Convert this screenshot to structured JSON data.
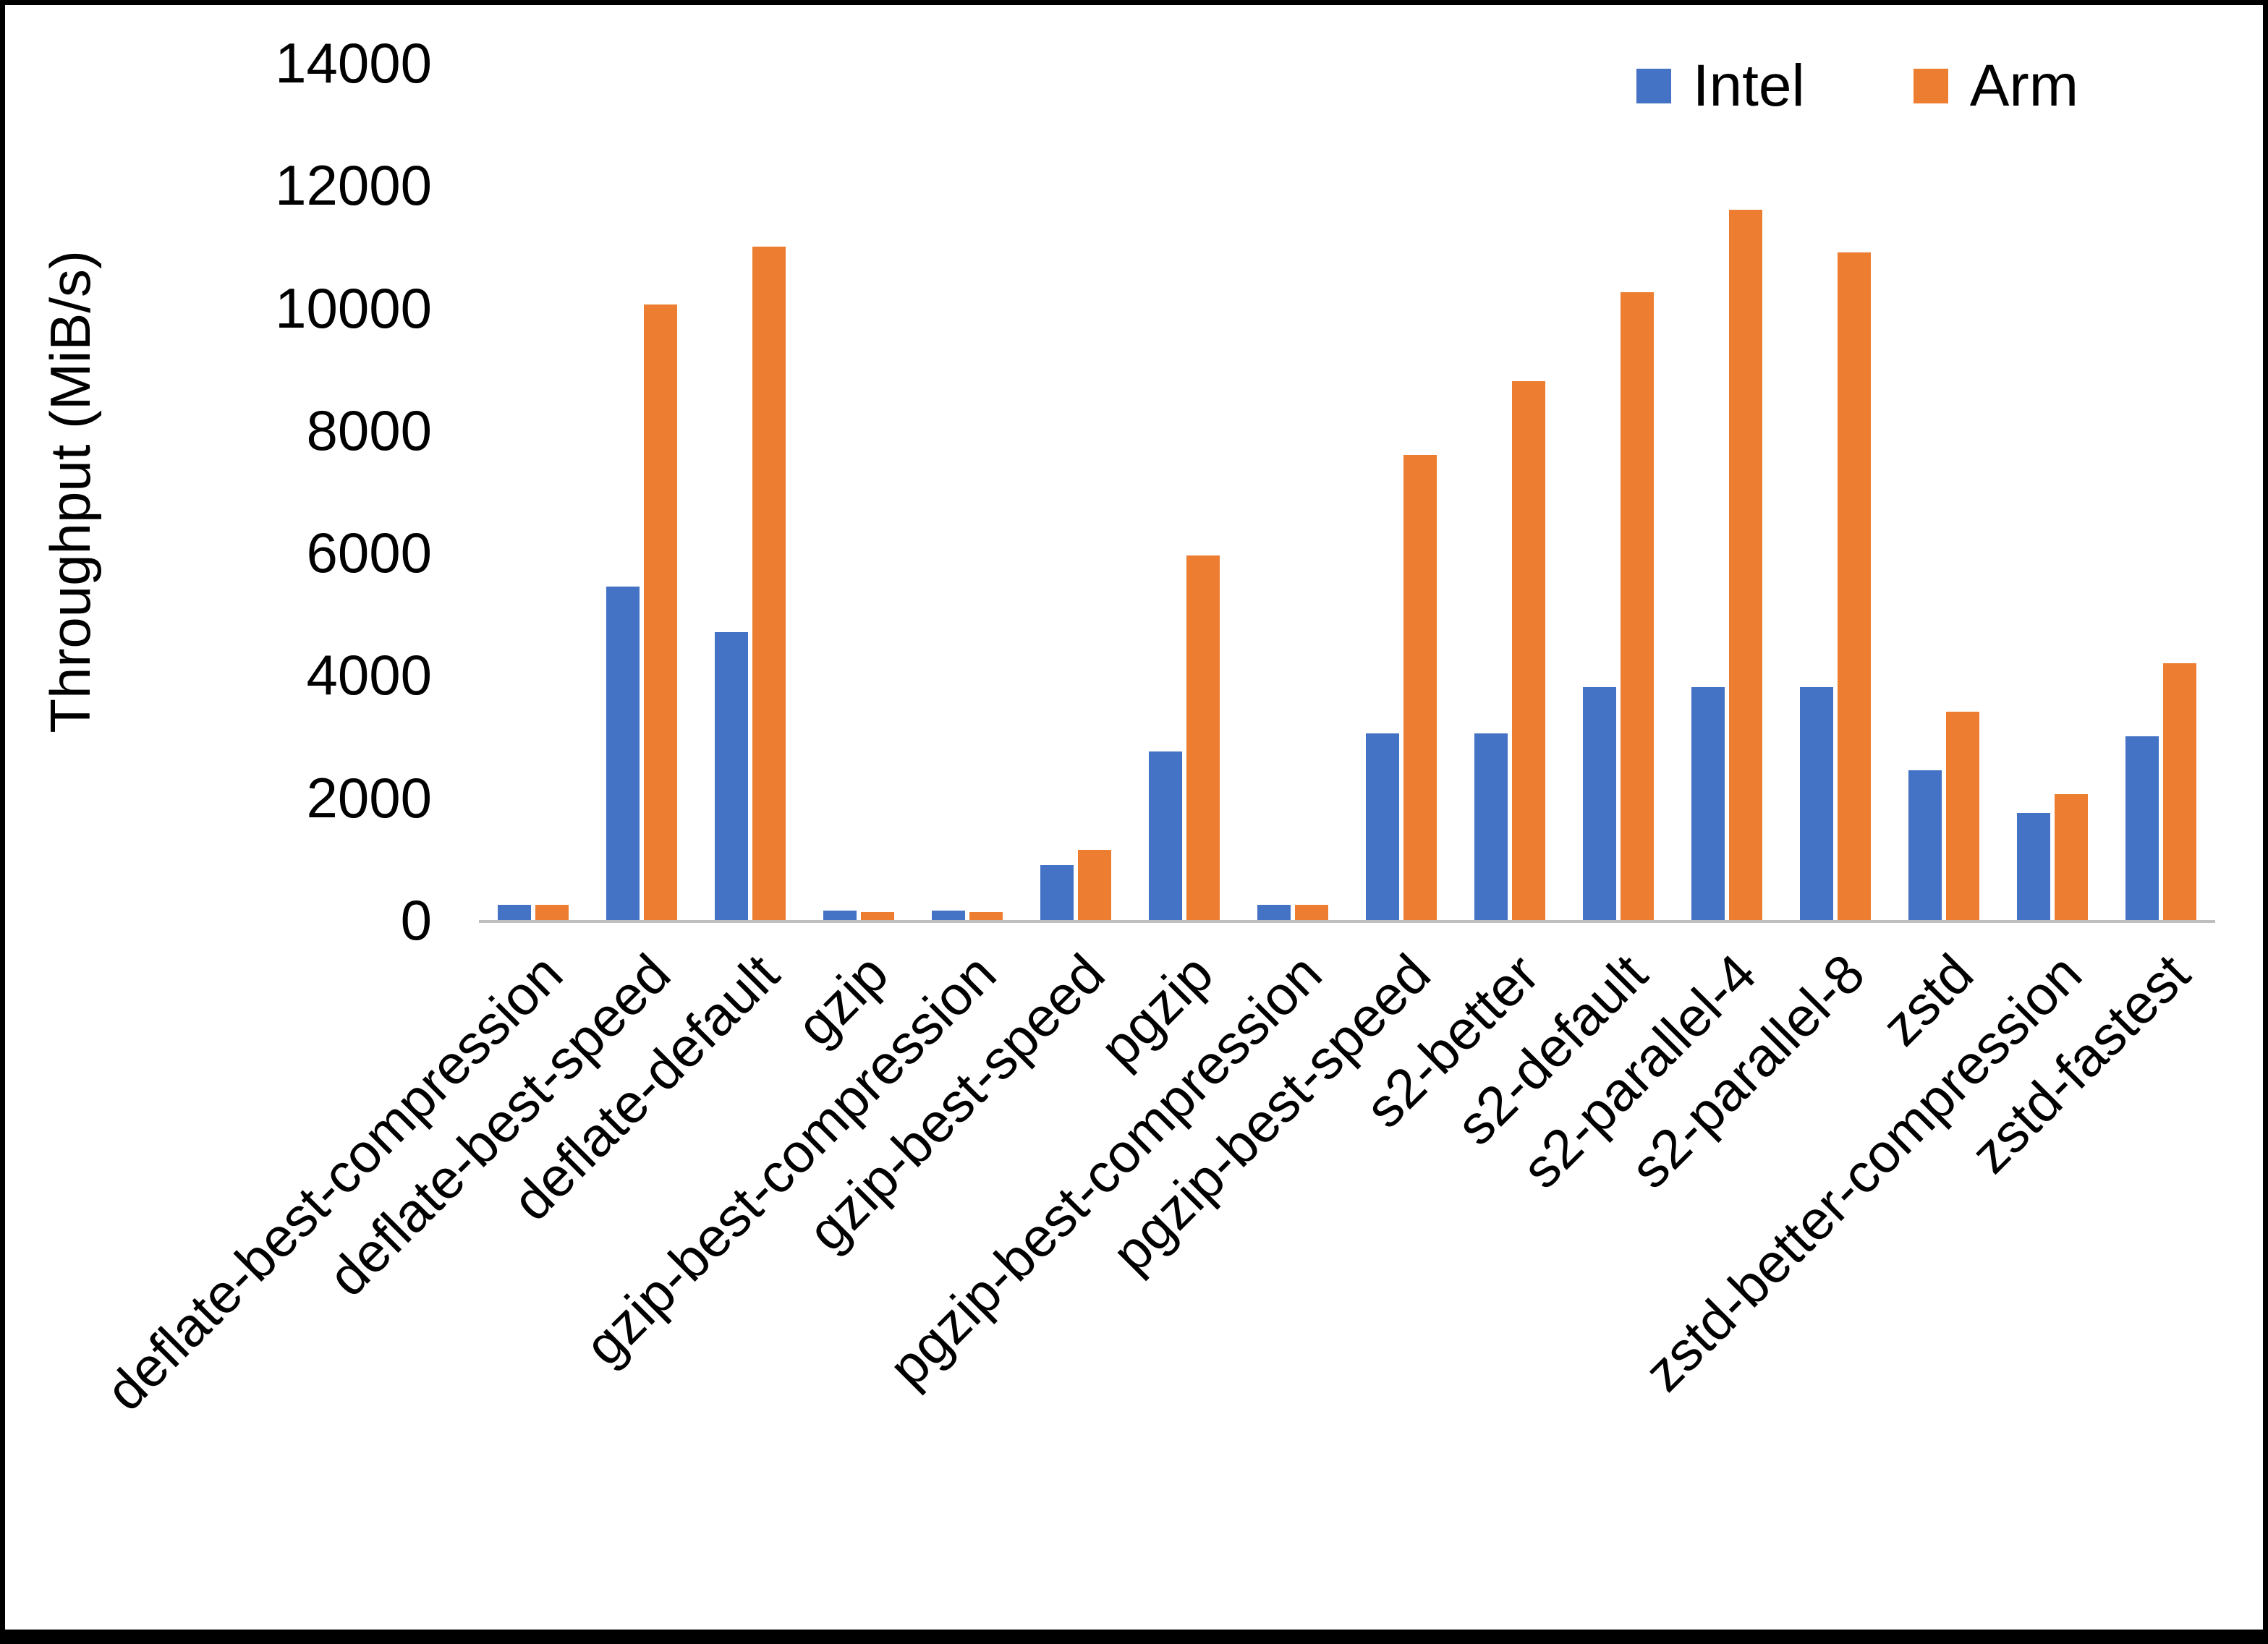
{
  "chart_data": {
    "type": "bar",
    "title": "",
    "xlabel": "",
    "ylabel": "Throughput (MiB/s)",
    "ylim": [
      0,
      14000
    ],
    "ytick_step": 2000,
    "grid": false,
    "legend_position": "top-right",
    "categories": [
      "deflate-best-compression",
      "deflate-best-speed",
      "deflate-default",
      "gzip",
      "gzip-best-compression",
      "gzip-best-speed",
      "pgzip",
      "pgzip-best-compression",
      "pgzip-best-speed",
      "s2-better",
      "s2-default",
      "s2-parallel-4",
      "s2-parallel-8",
      "zstd",
      "zstd-better-compression",
      "zstd-fastest"
    ],
    "series": [
      {
        "name": "Intel",
        "color": "#4472C4",
        "values": [
          250,
          5450,
          4700,
          150,
          150,
          900,
          2750,
          250,
          3050,
          3050,
          3800,
          3800,
          3800,
          2450,
          1750,
          3000
        ]
      },
      {
        "name": "Arm",
        "color": "#ED7D31",
        "values": [
          250,
          10050,
          11000,
          130,
          130,
          1150,
          5950,
          250,
          7600,
          8800,
          10250,
          11600,
          10900,
          3400,
          2050,
          4200
        ]
      }
    ],
    "axis_line_color": "#bfbfbf"
  }
}
